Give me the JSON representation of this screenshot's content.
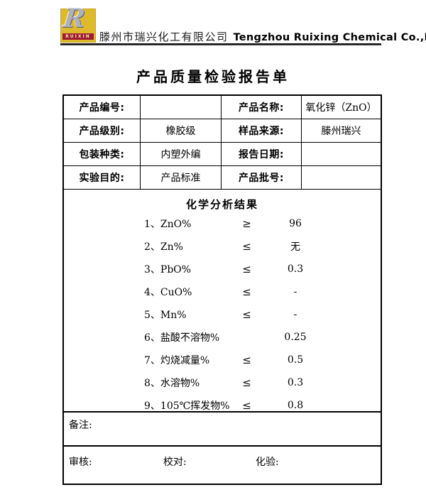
{
  "header": {
    "logo": {
      "r_letter": "R",
      "bar_text": "RUIXIN"
    },
    "company_cn": "滕州市瑞兴化工有限公司",
    "company_en": "Tengzhou Ruixing Chemical Co.,Ltd."
  },
  "title": "产品质量检验报告单",
  "colors": {
    "logo_yellow": "#DDB92B",
    "logo_red_bar": "#9E1B32",
    "logo_silver": "#ADB1B9",
    "text": "#000000",
    "rule": "#141414"
  },
  "info_table": {
    "rows": [
      {
        "cells": [
          {
            "text": "产品编号:"
          },
          {
            "text": ""
          },
          {
            "text": "产品名称:"
          },
          {
            "text": "氧化锌（ZnO）"
          }
        ]
      },
      {
        "cells": [
          {
            "text": "产品级别:"
          },
          {
            "text": "橡胶级"
          },
          {
            "text": "样品来源:"
          },
          {
            "text": "滕州瑞兴"
          }
        ]
      },
      {
        "cells": [
          {
            "text": "包装种类:"
          },
          {
            "text": "内塑外编"
          },
          {
            "text": "报告日期:"
          },
          {
            "text": ""
          }
        ]
      },
      {
        "cells": [
          {
            "text": "实验目的:"
          },
          {
            "text": "产品标准"
          },
          {
            "text": "产品批号:"
          },
          {
            "text": ""
          }
        ]
      }
    ]
  },
  "analysis": {
    "section_title": "化学分析结果",
    "items": [
      {
        "name": "1、ZnO%",
        "symbol": "≥",
        "value": "96"
      },
      {
        "name": "2、Zn%",
        "symbol": "≤",
        "value": "无"
      },
      {
        "name": "3、PbO%",
        "symbol": "≤",
        "value": "0.3"
      },
      {
        "name": "4、CuO%",
        "symbol": "≤",
        "value": "-"
      },
      {
        "name": "5、Mn%",
        "symbol": "≤",
        "value": "-"
      },
      {
        "name": "6、盐酸不溶物%",
        "symbol": "",
        "value": "0.25"
      },
      {
        "name": "7、灼烧减量%",
        "symbol": "≤",
        "value": "0.5"
      },
      {
        "name": "8、水溶物%",
        "symbol": "≤",
        "value": "0.3"
      },
      {
        "name": "9、105℃挥发物%",
        "symbol": "≤",
        "value": "0.8"
      }
    ]
  },
  "remarks": {
    "label": "备注:"
  },
  "signatures": {
    "review_label": "审核:",
    "proofread_label": "校对:",
    "assay_label": "化验:"
  }
}
